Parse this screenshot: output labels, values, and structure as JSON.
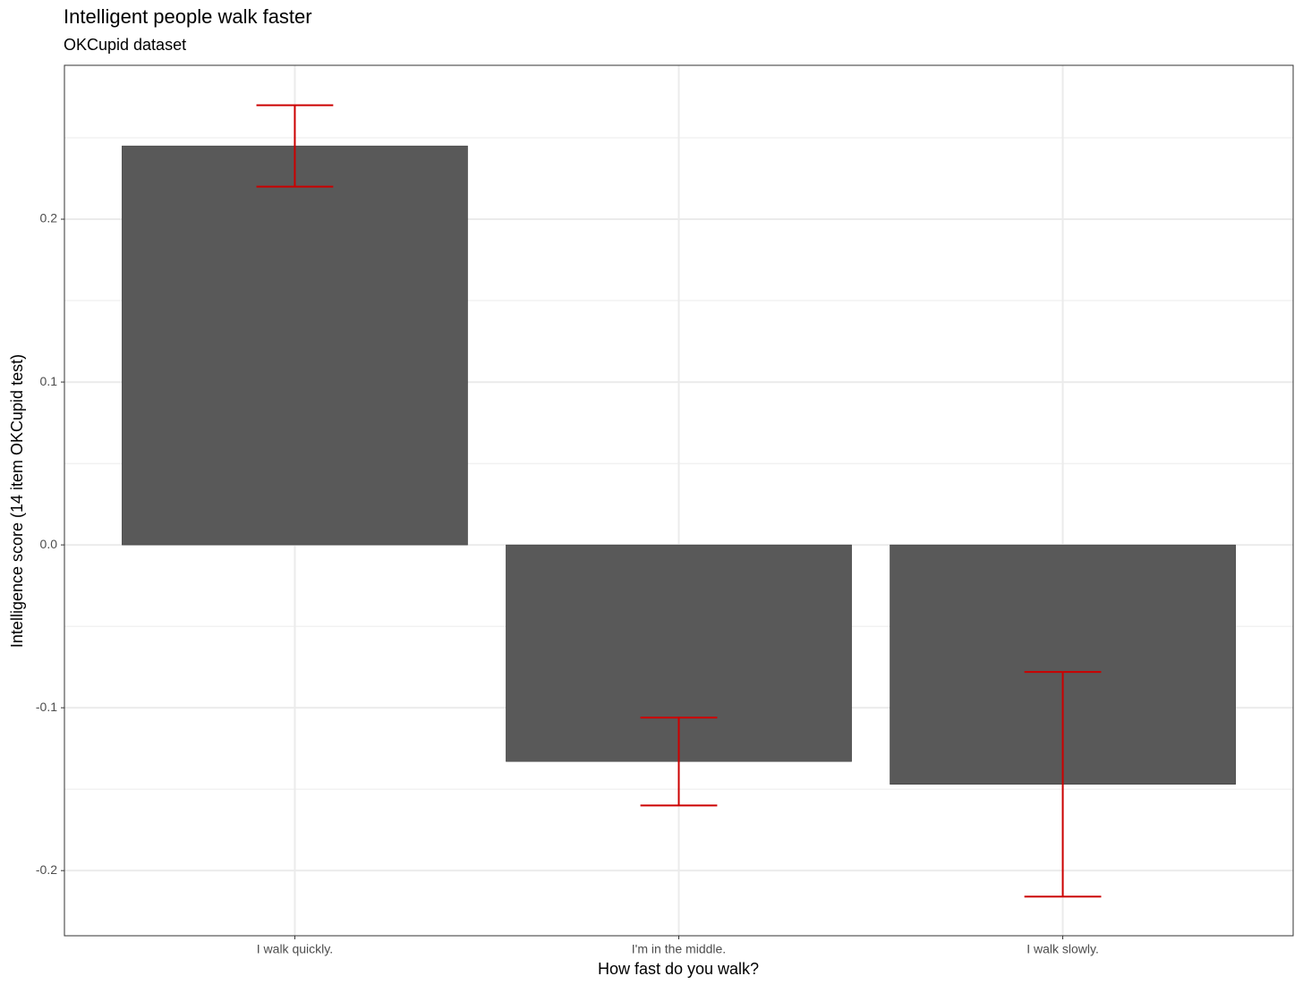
{
  "chart_data": {
    "type": "bar",
    "title": "Intelligent people walk faster",
    "subtitle": "OKCupid dataset",
    "x_label": "How fast do you walk?",
    "y_label": "Intelligence score (14 item OKCupid test)",
    "categories": [
      "I walk quickly.",
      "I'm in the middle.",
      "I walk slowly."
    ],
    "values": [
      0.245,
      -0.133,
      -0.147
    ],
    "errors": [
      0.025,
      0.027,
      0.069
    ],
    "color": "#595959",
    "error_color": "#cc0000",
    "ylim": [
      -0.24,
      0.2945
    ],
    "yticks": [
      -0.2,
      -0.1,
      {
        "value": 0,
        "label": "0.0"
      },
      0.1,
      0.2
    ],
    "minor_yticks": [
      -0.15,
      -0.05,
      0.05,
      0.15,
      0.25
    ],
    "grid": true
  }
}
